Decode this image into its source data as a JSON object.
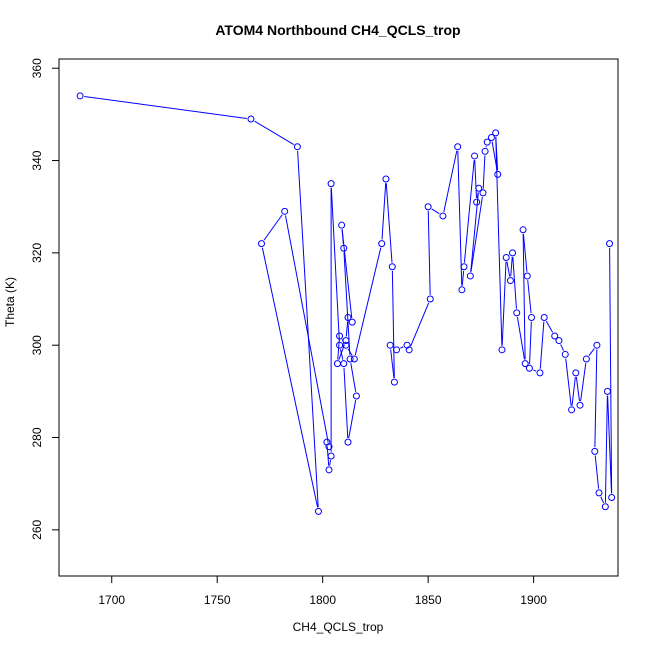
{
  "chart_data": {
    "type": "line",
    "title": "ATOM4 Northbound CH4_QCLS_trop",
    "xlabel": "CH4_QCLS_trop",
    "ylabel": "Theta (K)",
    "xlim": [
      1675,
      1940
    ],
    "ylim": [
      250,
      362
    ],
    "xticks": [
      "1700",
      "1750",
      "1800",
      "1850",
      "1900"
    ],
    "yticks": [
      "260",
      "280",
      "300",
      "320",
      "340",
      "360"
    ],
    "grid": false,
    "line_color": "#0000ff",
    "marker": "open-circle",
    "series": [
      {
        "name": "",
        "x": [
          1685,
          1766,
          1788,
          1798,
          1771,
          1782,
          1803,
          1802,
          1803,
          1804,
          1804,
          1808,
          1810,
          1812,
          1816,
          1813,
          1810,
          1809,
          1814,
          1812,
          1811,
          1807,
          1808,
          1811,
          1815,
          1828,
          1830,
          1833,
          1834,
          1832,
          1835,
          1840,
          1841,
          1851,
          1850,
          1857,
          1864,
          1866,
          1867,
          1872,
          1873,
          1874,
          1870,
          1876,
          1877,
          1878,
          1880,
          1883,
          1882,
          1885,
          1887,
          1889,
          1890,
          1892,
          1896,
          1895,
          1897,
          1899,
          1898,
          1903,
          1905,
          1910,
          1912,
          1915,
          1918,
          1920,
          1922,
          1925,
          1930,
          1929,
          1931,
          1934,
          1935,
          1937,
          1936
        ],
        "y": [
          354,
          349,
          343,
          264,
          322,
          329,
          278,
          279,
          273,
          276,
          335,
          300,
          296,
          279,
          289,
          297,
          321,
          326,
          305,
          306,
          301,
          296,
          302,
          300,
          297,
          322,
          336,
          317,
          292,
          300,
          299,
          300,
          299,
          310,
          330,
          328,
          343,
          312,
          317,
          341,
          331,
          334,
          315,
          333,
          342,
          344,
          345,
          337,
          346,
          299,
          319,
          314,
          320,
          307,
          296,
          325,
          315,
          306,
          295,
          294,
          306,
          302,
          301,
          298,
          286,
          294,
          287,
          297,
          300,
          277,
          268,
          265,
          290,
          267,
          322
        ]
      }
    ]
  }
}
